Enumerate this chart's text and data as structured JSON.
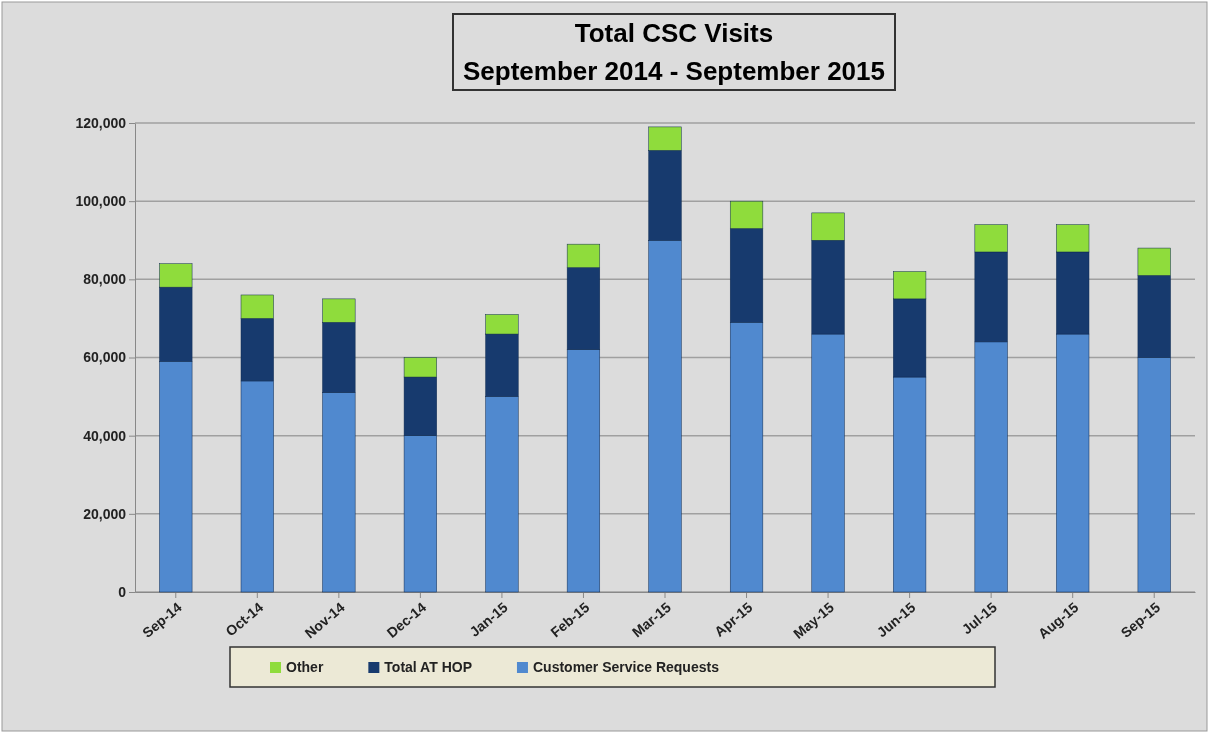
{
  "chart_data": {
    "type": "bar",
    "title": "Total CSC Visits",
    "subtitle": "September 2014 - September 2015",
    "categories": [
      "Sep-14",
      "Oct-14",
      "Nov-14",
      "Dec-14",
      "Jan-15",
      "Feb-15",
      "Mar-15",
      "Apr-15",
      "May-15",
      "Jun-15",
      "Jul-15",
      "Aug-15",
      "Sep-15"
    ],
    "stacked": true,
    "series": [
      {
        "name": "Customer Service Requests",
        "color": "#5089cf",
        "values": [
          59000,
          54000,
          51000,
          40000,
          50000,
          62000,
          90000,
          69000,
          66000,
          55000,
          64000,
          66000,
          60000
        ]
      },
      {
        "name": "Total AT HOP",
        "color": "#173a6e",
        "values": [
          19000,
          16000,
          18000,
          15000,
          16000,
          21000,
          23000,
          24000,
          24000,
          20000,
          23000,
          21000,
          21000
        ]
      },
      {
        "name": "Other",
        "color": "#8fdc3c",
        "values": [
          6000,
          6000,
          6000,
          5000,
          5000,
          6000,
          6000,
          7000,
          7000,
          7000,
          7000,
          7000,
          7000
        ]
      }
    ],
    "ylim": [
      0,
      120000
    ],
    "yticks": [
      0,
      {
        "value": 20000,
        "label": "20,000"
      },
      {
        "value": 40000,
        "label": "40,000"
      },
      {
        "value": 60000,
        "label": "60,000"
      },
      {
        "value": 80000,
        "label": "80,000"
      },
      {
        "value": 100000,
        "label": "100,000"
      },
      {
        "value": 120000,
        "label": "120,000"
      }
    ],
    "grid": "y",
    "legend": "bottom"
  }
}
